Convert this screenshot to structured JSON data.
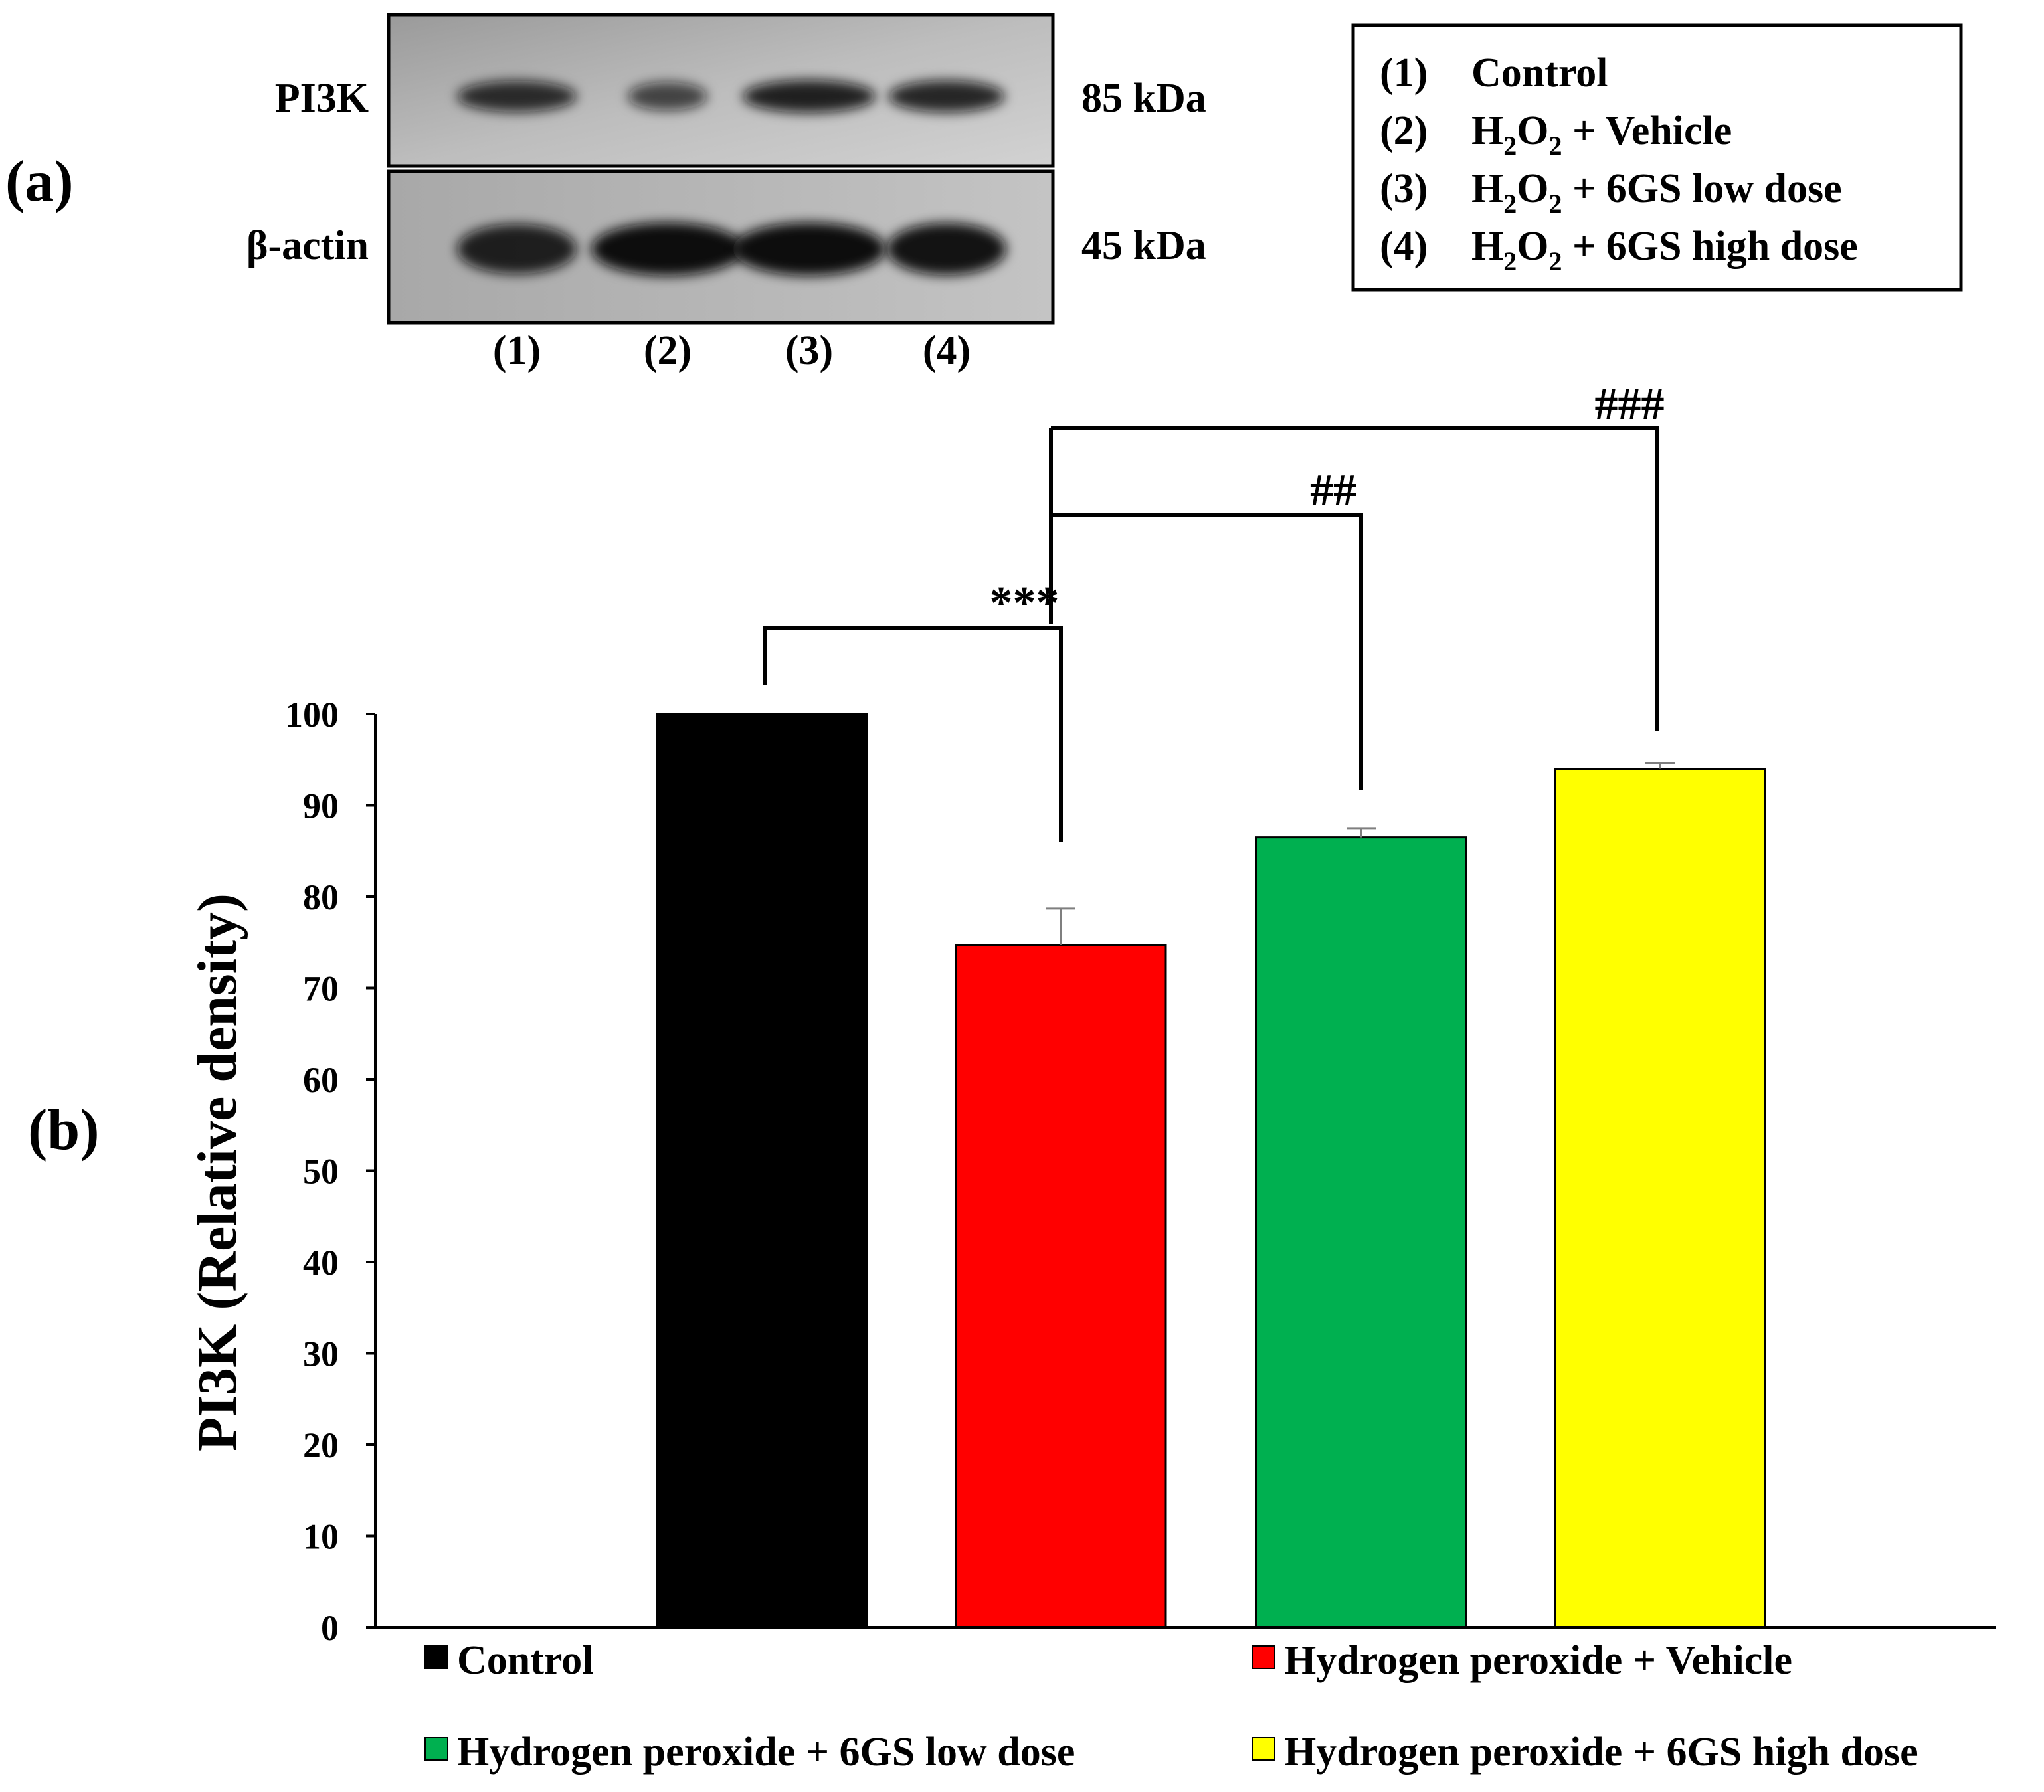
{
  "panel_a": {
    "label": "(a)",
    "rows": [
      {
        "name": "PI3K",
        "mw": "85 kDa",
        "band_intensity": [
          0.75,
          0.55,
          0.85,
          0.8
        ]
      },
      {
        "name": "β-actin",
        "mw": "45 kDa",
        "band_intensity": [
          0.85,
          1.0,
          1.0,
          0.95
        ]
      }
    ],
    "lane_labels": [
      "(1)",
      "(2)",
      "(3)",
      "(4)"
    ]
  },
  "key": [
    {
      "num": "(1)",
      "text": "Control"
    },
    {
      "num": "(2)",
      "h": "H",
      "s1": "2",
      "o": "O",
      "s2": "2",
      "rest": " + Vehicle"
    },
    {
      "num": "(3)",
      "h": "H",
      "s1": "2",
      "o": "O",
      "s2": "2",
      "rest": " + 6GS low dose"
    },
    {
      "num": "(4)",
      "h": "H",
      "s1": "2",
      "o": "O",
      "s2": "2",
      "rest": " + 6GS high dose"
    }
  ],
  "panel_b": {
    "label": "(b)"
  },
  "chart_data": {
    "type": "bar",
    "title": "",
    "xlabel": "",
    "ylabel": "PI3K (Relative density)",
    "ylim": [
      0,
      100
    ],
    "yticks": [
      "0",
      "10",
      "20",
      "30",
      "40",
      "50",
      "60",
      "70",
      "80",
      "90",
      "100"
    ],
    "categories": [
      "Control",
      "Hydrogen peroxide + Vehicle",
      "Hydrogen peroxide + 6GS low dose",
      "Hydrogen peroxide + 6GS high dose"
    ],
    "values": [
      100,
      74.7,
      86.5,
      94.0
    ],
    "errors": [
      0.0,
      4.0,
      1.0,
      0.6
    ],
    "colors": [
      "#000000",
      "#ff0000",
      "#00b050",
      "#ffff00"
    ],
    "legend_position": "bottom",
    "significance": [
      {
        "from": 0,
        "to": 1,
        "label": "***"
      },
      {
        "from": 1,
        "to": 2,
        "label": "##"
      },
      {
        "from": 1,
        "to": 3,
        "label": "###"
      }
    ]
  }
}
